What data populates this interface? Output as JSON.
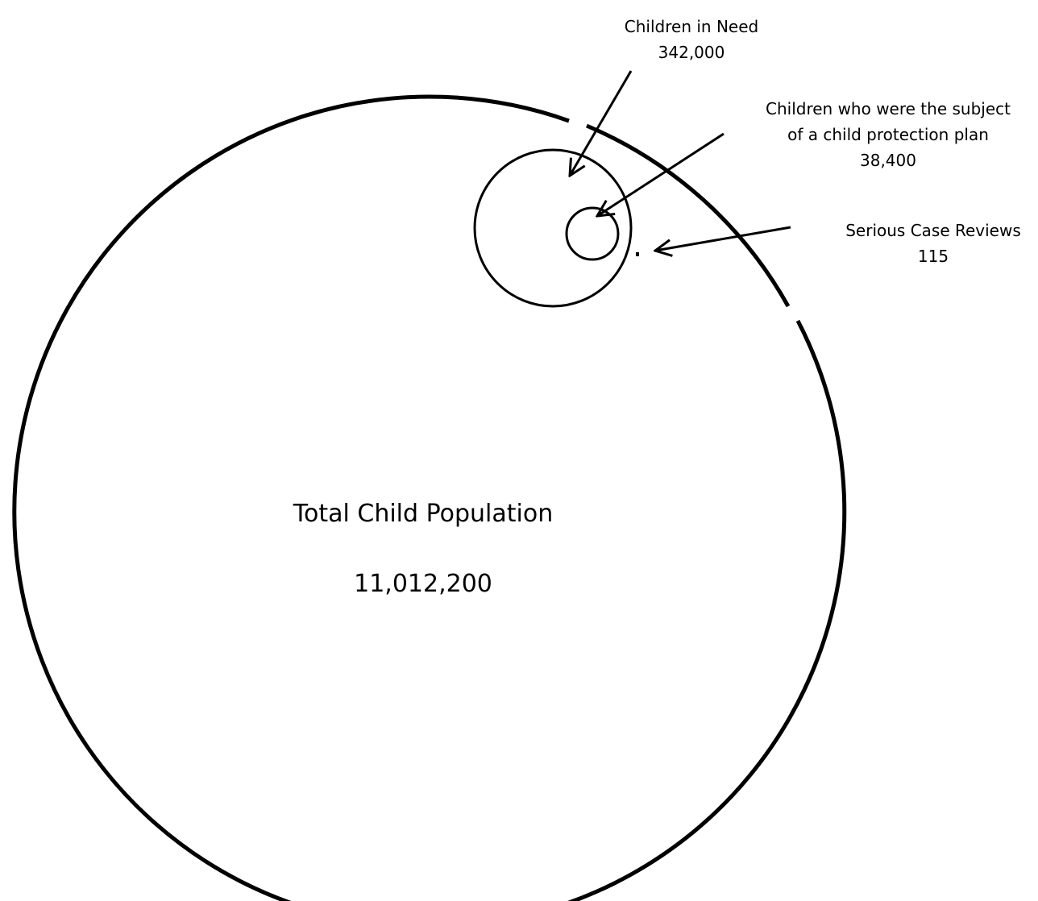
{
  "colors": {
    "background": "#ffffff",
    "stroke": "#000000"
  },
  "total": {
    "name": "Total Child Population",
    "value": "11,012,200"
  },
  "children_in_need": {
    "name": "Children in Need",
    "value": "342,000"
  },
  "child_protection_plan": {
    "line1": "Children who were the subject",
    "line2": "of a child protection plan",
    "value": "38,400"
  },
  "serious_case_reviews": {
    "name": "Serious Case Reviews",
    "value": "115"
  }
}
